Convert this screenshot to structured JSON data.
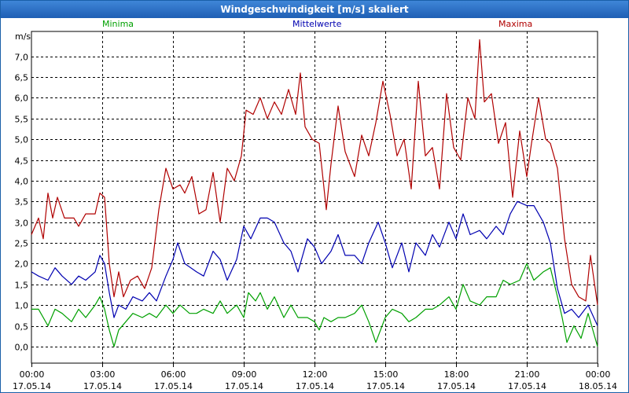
{
  "chart_data": {
    "type": "line",
    "title": "Windgeschwindigkeit [m/s] skaliert",
    "ylabel": "m/s",
    "ylim": [
      -0.4,
      7.6
    ],
    "yticks": [
      "0,0",
      "0,5",
      "1,0",
      "1,5",
      "2,0",
      "2,5",
      "3,0",
      "3,5",
      "4,0",
      "4,5",
      "5,0",
      "5,5",
      "6,0",
      "6,5",
      "7,0"
    ],
    "xlim_hours": [
      0,
      24
    ],
    "xticks": [
      {
        "h": 0,
        "time": "00:00",
        "date": "17.05.14"
      },
      {
        "h": 3,
        "time": "03:00",
        "date": "17.05.14"
      },
      {
        "h": 6,
        "time": "06:00",
        "date": "17.05.14"
      },
      {
        "h": 9,
        "time": "09:00",
        "date": "17.05.14"
      },
      {
        "h": 12,
        "time": "12:00",
        "date": "17.05.14"
      },
      {
        "h": 15,
        "time": "15:00",
        "date": "17.05.14"
      },
      {
        "h": 18,
        "time": "18:00",
        "date": "17.05.14"
      },
      {
        "h": 21,
        "time": "21:00",
        "date": "17.05.14"
      },
      {
        "h": 24,
        "time": "00:00",
        "date": "18.05.14"
      }
    ],
    "series": [
      {
        "name": "Minima",
        "color": "#00a000",
        "points": [
          [
            0,
            0.9
          ],
          [
            0.3,
            0.9
          ],
          [
            0.7,
            0.5
          ],
          [
            1.0,
            0.9
          ],
          [
            1.3,
            0.8
          ],
          [
            1.7,
            0.6
          ],
          [
            2.0,
            0.9
          ],
          [
            2.3,
            0.7
          ],
          [
            2.7,
            1.0
          ],
          [
            2.9,
            1.2
          ],
          [
            3.1,
            0.9
          ],
          [
            3.3,
            0.4
          ],
          [
            3.5,
            0.0
          ],
          [
            3.7,
            0.4
          ],
          [
            4.0,
            0.6
          ],
          [
            4.3,
            0.8
          ],
          [
            4.7,
            0.7
          ],
          [
            5.0,
            0.8
          ],
          [
            5.3,
            0.7
          ],
          [
            5.7,
            1.0
          ],
          [
            6.0,
            0.8
          ],
          [
            6.3,
            1.0
          ],
          [
            6.7,
            0.8
          ],
          [
            7.0,
            0.8
          ],
          [
            7.3,
            0.9
          ],
          [
            7.7,
            0.8
          ],
          [
            8.0,
            1.1
          ],
          [
            8.3,
            0.8
          ],
          [
            8.7,
            1.0
          ],
          [
            9.0,
            0.7
          ],
          [
            9.2,
            1.3
          ],
          [
            9.5,
            1.1
          ],
          [
            9.7,
            1.3
          ],
          [
            10.0,
            0.9
          ],
          [
            10.3,
            1.2
          ],
          [
            10.7,
            0.7
          ],
          [
            11.0,
            1.0
          ],
          [
            11.3,
            0.7
          ],
          [
            11.7,
            0.7
          ],
          [
            12.0,
            0.6
          ],
          [
            12.2,
            0.4
          ],
          [
            12.4,
            0.7
          ],
          [
            12.7,
            0.6
          ],
          [
            13.0,
            0.7
          ],
          [
            13.3,
            0.7
          ],
          [
            13.7,
            0.8
          ],
          [
            14.0,
            1.0
          ],
          [
            14.3,
            0.6
          ],
          [
            14.6,
            0.1
          ],
          [
            14.8,
            0.4
          ],
          [
            15.0,
            0.7
          ],
          [
            15.3,
            0.9
          ],
          [
            15.7,
            0.8
          ],
          [
            16.0,
            0.6
          ],
          [
            16.3,
            0.7
          ],
          [
            16.7,
            0.9
          ],
          [
            17.0,
            0.9
          ],
          [
            17.3,
            1.0
          ],
          [
            17.7,
            1.2
          ],
          [
            18.0,
            0.9
          ],
          [
            18.3,
            1.5
          ],
          [
            18.6,
            1.1
          ],
          [
            19.0,
            1.0
          ],
          [
            19.3,
            1.2
          ],
          [
            19.7,
            1.2
          ],
          [
            20.0,
            1.6
          ],
          [
            20.3,
            1.5
          ],
          [
            20.7,
            1.6
          ],
          [
            21.0,
            2.0
          ],
          [
            21.3,
            1.6
          ],
          [
            21.7,
            1.8
          ],
          [
            22.0,
            1.9
          ],
          [
            22.3,
            1.2
          ],
          [
            22.5,
            0.7
          ],
          [
            22.7,
            0.1
          ],
          [
            23.0,
            0.5
          ],
          [
            23.3,
            0.2
          ],
          [
            23.6,
            0.8
          ],
          [
            24.0,
            0.0
          ]
        ]
      },
      {
        "name": "Mittelwerte",
        "color": "#0000b0",
        "points": [
          [
            0,
            1.8
          ],
          [
            0.3,
            1.7
          ],
          [
            0.7,
            1.6
          ],
          [
            1.0,
            1.9
          ],
          [
            1.3,
            1.7
          ],
          [
            1.7,
            1.5
          ],
          [
            2.0,
            1.7
          ],
          [
            2.3,
            1.6
          ],
          [
            2.7,
            1.8
          ],
          [
            2.9,
            2.2
          ],
          [
            3.1,
            2.0
          ],
          [
            3.3,
            1.3
          ],
          [
            3.5,
            0.7
          ],
          [
            3.7,
            1.0
          ],
          [
            4.0,
            0.9
          ],
          [
            4.3,
            1.2
          ],
          [
            4.7,
            1.1
          ],
          [
            5.0,
            1.3
          ],
          [
            5.3,
            1.1
          ],
          [
            5.7,
            1.7
          ],
          [
            6.0,
            2.1
          ],
          [
            6.2,
            2.5
          ],
          [
            6.5,
            2.0
          ],
          [
            7.0,
            1.8
          ],
          [
            7.3,
            1.7
          ],
          [
            7.7,
            2.3
          ],
          [
            8.0,
            2.1
          ],
          [
            8.3,
            1.6
          ],
          [
            8.7,
            2.1
          ],
          [
            9.0,
            2.9
          ],
          [
            9.3,
            2.6
          ],
          [
            9.7,
            3.1
          ],
          [
            10.0,
            3.1
          ],
          [
            10.3,
            3.0
          ],
          [
            10.7,
            2.5
          ],
          [
            11.0,
            2.3
          ],
          [
            11.3,
            1.8
          ],
          [
            11.7,
            2.6
          ],
          [
            12.0,
            2.4
          ],
          [
            12.3,
            2.0
          ],
          [
            12.7,
            2.3
          ],
          [
            13.0,
            2.7
          ],
          [
            13.3,
            2.2
          ],
          [
            13.7,
            2.2
          ],
          [
            14.0,
            2.0
          ],
          [
            14.3,
            2.5
          ],
          [
            14.7,
            3.0
          ],
          [
            15.0,
            2.5
          ],
          [
            15.3,
            1.9
          ],
          [
            15.7,
            2.5
          ],
          [
            16.0,
            1.8
          ],
          [
            16.3,
            2.5
          ],
          [
            16.7,
            2.2
          ],
          [
            17.0,
            2.7
          ],
          [
            17.3,
            2.4
          ],
          [
            17.7,
            3.0
          ],
          [
            18.0,
            2.6
          ],
          [
            18.3,
            3.2
          ],
          [
            18.6,
            2.7
          ],
          [
            19.0,
            2.8
          ],
          [
            19.3,
            2.6
          ],
          [
            19.7,
            2.9
          ],
          [
            20.0,
            2.7
          ],
          [
            20.3,
            3.2
          ],
          [
            20.6,
            3.5
          ],
          [
            21.0,
            3.4
          ],
          [
            21.3,
            3.4
          ],
          [
            21.7,
            3.0
          ],
          [
            22.0,
            2.5
          ],
          [
            22.3,
            1.4
          ],
          [
            22.6,
            0.8
          ],
          [
            22.9,
            0.9
          ],
          [
            23.2,
            0.7
          ],
          [
            23.6,
            1.0
          ],
          [
            24.0,
            0.5
          ]
        ]
      },
      {
        "name": "Maxima",
        "color": "#b00000",
        "points": [
          [
            0,
            2.7
          ],
          [
            0.3,
            3.1
          ],
          [
            0.5,
            2.6
          ],
          [
            0.7,
            3.7
          ],
          [
            0.9,
            3.1
          ],
          [
            1.1,
            3.6
          ],
          [
            1.4,
            3.1
          ],
          [
            1.8,
            3.1
          ],
          [
            2.0,
            2.9
          ],
          [
            2.3,
            3.2
          ],
          [
            2.7,
            3.2
          ],
          [
            2.9,
            3.7
          ],
          [
            3.1,
            3.6
          ],
          [
            3.3,
            2.0
          ],
          [
            3.5,
            1.2
          ],
          [
            3.7,
            1.8
          ],
          [
            3.9,
            1.2
          ],
          [
            4.2,
            1.6
          ],
          [
            4.5,
            1.7
          ],
          [
            4.8,
            1.4
          ],
          [
            5.1,
            1.9
          ],
          [
            5.4,
            3.3
          ],
          [
            5.7,
            4.3
          ],
          [
            6.0,
            3.8
          ],
          [
            6.3,
            3.9
          ],
          [
            6.5,
            3.7
          ],
          [
            6.8,
            4.1
          ],
          [
            7.1,
            3.2
          ],
          [
            7.4,
            3.3
          ],
          [
            7.7,
            4.2
          ],
          [
            8.0,
            3.0
          ],
          [
            8.3,
            4.3
          ],
          [
            8.6,
            4.0
          ],
          [
            8.9,
            4.6
          ],
          [
            9.1,
            5.7
          ],
          [
            9.4,
            5.6
          ],
          [
            9.7,
            6.0
          ],
          [
            10.0,
            5.5
          ],
          [
            10.3,
            5.9
          ],
          [
            10.6,
            5.6
          ],
          [
            10.9,
            6.2
          ],
          [
            11.2,
            5.6
          ],
          [
            11.4,
            6.6
          ],
          [
            11.6,
            5.3
          ],
          [
            11.9,
            5.0
          ],
          [
            12.2,
            4.9
          ],
          [
            12.5,
            3.3
          ],
          [
            12.7,
            4.4
          ],
          [
            13.0,
            5.8
          ],
          [
            13.3,
            4.7
          ],
          [
            13.7,
            4.1
          ],
          [
            14.0,
            5.1
          ],
          [
            14.3,
            4.6
          ],
          [
            14.6,
            5.4
          ],
          [
            14.9,
            6.4
          ],
          [
            15.2,
            5.6
          ],
          [
            15.5,
            4.6
          ],
          [
            15.8,
            5.0
          ],
          [
            16.1,
            3.8
          ],
          [
            16.4,
            6.4
          ],
          [
            16.7,
            4.6
          ],
          [
            17.0,
            4.8
          ],
          [
            17.3,
            3.8
          ],
          [
            17.6,
            6.1
          ],
          [
            17.9,
            4.8
          ],
          [
            18.2,
            4.5
          ],
          [
            18.5,
            6.0
          ],
          [
            18.8,
            5.5
          ],
          [
            19.0,
            7.4
          ],
          [
            19.2,
            5.9
          ],
          [
            19.5,
            6.1
          ],
          [
            19.8,
            4.9
          ],
          [
            20.1,
            5.4
          ],
          [
            20.4,
            3.6
          ],
          [
            20.7,
            5.2
          ],
          [
            21.0,
            4.1
          ],
          [
            21.2,
            4.9
          ],
          [
            21.5,
            6.0
          ],
          [
            21.8,
            5.0
          ],
          [
            22.0,
            4.9
          ],
          [
            22.3,
            4.3
          ],
          [
            22.6,
            2.6
          ],
          [
            22.9,
            1.5
          ],
          [
            23.2,
            1.2
          ],
          [
            23.5,
            1.1
          ],
          [
            23.7,
            2.2
          ],
          [
            24.0,
            1.0
          ]
        ]
      }
    ]
  }
}
